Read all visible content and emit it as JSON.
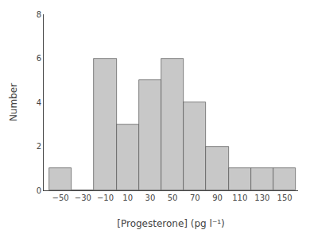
{
  "chart_data": {
    "type": "histogram",
    "bins": [
      -60,
      -40,
      -20,
      0,
      20,
      40,
      60,
      80,
      100,
      120,
      140,
      160
    ],
    "values": [
      1,
      0,
      6,
      3,
      5,
      6,
      4,
      2,
      1,
      1,
      1
    ],
    "color": "#c8c8c8",
    "xlabel": "[Progesterone] (pg l⁻¹)",
    "ylabel": "Number",
    "xlim": [
      -65,
      162
    ],
    "xticks": [
      {
        "value": -50,
        "label": "−50"
      },
      {
        "value": -30,
        "label": "−30"
      },
      {
        "value": -10,
        "label": "−10"
      },
      10,
      30,
      50,
      70,
      90,
      110,
      130,
      150
    ],
    "ylim": [
      0,
      8
    ],
    "yticks": [
      0,
      2,
      4,
      6,
      8
    ],
    "grid": false
  }
}
